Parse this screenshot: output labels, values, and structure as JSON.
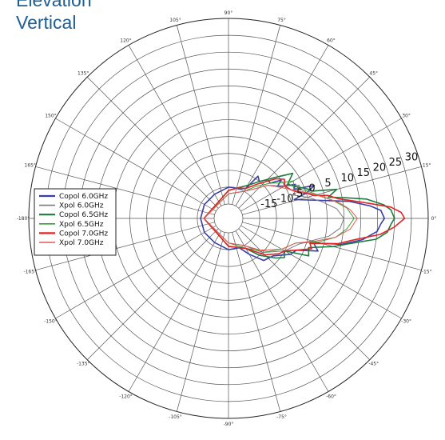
{
  "titles": {
    "line1": "Elevation",
    "line2": "Vertical"
  },
  "chart_data": {
    "type": "polar-line",
    "title": "Elevation Vertical",
    "angular_ticks": [
      {
        "label": "90°",
        "angle": 90
      },
      {
        "label": "75°",
        "angle": 75
      },
      {
        "label": "60°",
        "angle": 60
      },
      {
        "label": "45°",
        "angle": 45
      },
      {
        "label": "30°",
        "angle": 30
      },
      {
        "label": "15°",
        "angle": 15
      },
      {
        "label": "0°",
        "angle": 0
      },
      {
        "label": "-15°",
        "angle": -15
      },
      {
        "label": "-30°",
        "angle": -30
      },
      {
        "label": "-45°",
        "angle": -45
      },
      {
        "label": "-60°",
        "angle": -60
      },
      {
        "label": "-75°",
        "angle": -75
      },
      {
        "label": "-90°",
        "angle": -90
      },
      {
        "label": "105°",
        "angle": 105
      },
      {
        "label": "120°",
        "angle": 120
      },
      {
        "label": "135°",
        "angle": 135
      },
      {
        "label": "150°",
        "angle": 150
      },
      {
        "label": "165°",
        "angle": 165
      },
      {
        "label": "-180°",
        "angle": 180
      },
      {
        "label": "-165°",
        "angle": 195
      },
      {
        "label": "-150°",
        "angle": 210
      },
      {
        "label": "-135°",
        "angle": 225
      },
      {
        "label": "-120°",
        "angle": 240
      },
      {
        "label": "-105°",
        "angle": 255
      }
    ],
    "radial_ticks": [
      {
        "label": "-15",
        "value": -15
      },
      {
        "label": "-10",
        "value": -10
      },
      {
        "label": "-5",
        "value": -5
      },
      {
        "label": "0",
        "value": 0
      },
      {
        "label": "5",
        "value": 5
      },
      {
        "label": "10",
        "value": 10
      },
      {
        "label": "15",
        "value": 15
      },
      {
        "label": "20",
        "value": 20
      },
      {
        "label": "25",
        "value": 25
      },
      {
        "label": "30",
        "value": 30
      }
    ],
    "rlim": [
      -20,
      35
    ],
    "grid": true,
    "legend_position": "left",
    "series": [
      {
        "name": "Copol 6.0GHz",
        "color": "#3a3fa8",
        "width": 1.6,
        "points": [
          [
            0,
            22
          ],
          [
            3,
            21
          ],
          [
            5,
            18
          ],
          [
            8,
            12
          ],
          [
            10,
            6
          ],
          [
            13,
            0
          ],
          [
            16,
            -4
          ],
          [
            18,
            0
          ],
          [
            21,
            3
          ],
          [
            24,
            -3
          ],
          [
            27,
            -2
          ],
          [
            30,
            -5
          ],
          [
            33,
            -7
          ],
          [
            36,
            -5
          ],
          [
            40,
            -8
          ],
          [
            45,
            -8
          ],
          [
            50,
            -10
          ],
          [
            55,
            -9
          ],
          [
            60,
            -14
          ],
          [
            70,
            -15
          ],
          [
            80,
            -15
          ],
          [
            90,
            -15
          ],
          [
            120,
            -16
          ],
          [
            150,
            -16
          ],
          [
            180,
            -16
          ],
          [
            210,
            -16
          ],
          [
            240,
            -16
          ],
          [
            270,
            -15
          ],
          [
            290,
            -15
          ],
          [
            300,
            -12
          ],
          [
            310,
            -8
          ],
          [
            320,
            -7
          ],
          [
            330,
            -3
          ],
          [
            335,
            -2
          ],
          [
            340,
            4
          ],
          [
            344,
            2
          ],
          [
            347,
            10
          ],
          [
            351,
            16
          ],
          [
            355,
            20
          ],
          [
            358,
            21
          ],
          [
            360,
            22
          ]
        ]
      },
      {
        "name": "Xpol 6.0GHz",
        "color": "#7a7a7a",
        "width": 1.0,
        "points": [
          [
            0,
            10
          ],
          [
            5,
            8
          ],
          [
            10,
            4
          ],
          [
            15,
            0
          ],
          [
            20,
            -4
          ],
          [
            25,
            -1
          ],
          [
            30,
            -5
          ],
          [
            40,
            -9
          ],
          [
            50,
            -13
          ],
          [
            60,
            -15
          ],
          [
            90,
            -17
          ],
          [
            180,
            -17
          ],
          [
            270,
            -17
          ],
          [
            300,
            -15
          ],
          [
            315,
            -10
          ],
          [
            330,
            -5
          ],
          [
            340,
            -2
          ],
          [
            350,
            6
          ],
          [
            355,
            9
          ],
          [
            360,
            10
          ]
        ]
      },
      {
        "name": "Copol 6.5GHz",
        "color": "#1f7a3e",
        "width": 1.6,
        "points": [
          [
            0,
            25
          ],
          [
            3,
            24
          ],
          [
            5,
            22
          ],
          [
            8,
            17
          ],
          [
            10,
            11
          ],
          [
            12,
            6
          ],
          [
            15,
            9
          ],
          [
            18,
            2
          ],
          [
            20,
            1
          ],
          [
            25,
            -2
          ],
          [
            30,
            -4
          ],
          [
            35,
            -1
          ],
          [
            40,
            -5
          ],
          [
            50,
            -10
          ],
          [
            60,
            -13
          ],
          [
            75,
            -15
          ],
          [
            90,
            -16
          ],
          [
            180,
            -17
          ],
          [
            270,
            -16
          ],
          [
            300,
            -14
          ],
          [
            310,
            -10
          ],
          [
            320,
            -6
          ],
          [
            325,
            -4
          ],
          [
            330,
            -5
          ],
          [
            335,
            2
          ],
          [
            340,
            1
          ],
          [
            345,
            8
          ],
          [
            348,
            12
          ],
          [
            352,
            20
          ],
          [
            355,
            23
          ],
          [
            358,
            24
          ],
          [
            360,
            25
          ]
        ]
      },
      {
        "name": "Xpol 6.5GHz",
        "color": "#33a030",
        "width": 1.0,
        "points": [
          [
            0,
            13
          ],
          [
            5,
            11
          ],
          [
            10,
            7
          ],
          [
            15,
            3
          ],
          [
            20,
            0
          ],
          [
            25,
            -3
          ],
          [
            30,
            -2
          ],
          [
            35,
            -6
          ],
          [
            40,
            -8
          ],
          [
            50,
            -12
          ],
          [
            60,
            -15
          ],
          [
            90,
            -17
          ],
          [
            180,
            -17
          ],
          [
            270,
            -17
          ],
          [
            300,
            -14
          ],
          [
            320,
            -9
          ],
          [
            330,
            -6
          ],
          [
            340,
            -3
          ],
          [
            345,
            3
          ],
          [
            350,
            8
          ],
          [
            355,
            11
          ],
          [
            360,
            13
          ]
        ]
      },
      {
        "name": "Copol 7.0GHz",
        "color": "#e22323",
        "width": 1.6,
        "points": [
          [
            0,
            28
          ],
          [
            2,
            27
          ],
          [
            4,
            24
          ],
          [
            6,
            18
          ],
          [
            8,
            13
          ],
          [
            10,
            9
          ],
          [
            13,
            6
          ],
          [
            15,
            2
          ],
          [
            18,
            0
          ],
          [
            20,
            -2
          ],
          [
            25,
            -4
          ],
          [
            30,
            -5
          ],
          [
            35,
            -4
          ],
          [
            40,
            -6
          ],
          [
            50,
            -11
          ],
          [
            60,
            -14
          ],
          [
            75,
            -15
          ],
          [
            90,
            -16
          ],
          [
            180,
            -17
          ],
          [
            270,
            -16
          ],
          [
            300,
            -14
          ],
          [
            315,
            -9
          ],
          [
            325,
            -6
          ],
          [
            330,
            -5
          ],
          [
            335,
            -2
          ],
          [
            340,
            2
          ],
          [
            343,
            1
          ],
          [
            347,
            9
          ],
          [
            350,
            13
          ],
          [
            354,
            21
          ],
          [
            357,
            25
          ],
          [
            360,
            28
          ]
        ]
      },
      {
        "name": "Xpol 7.0GHz",
        "color": "#e65a5a",
        "width": 1.0,
        "points": [
          [
            0,
            14
          ],
          [
            4,
            12
          ],
          [
            8,
            9
          ],
          [
            12,
            5
          ],
          [
            16,
            2
          ],
          [
            20,
            -1
          ],
          [
            25,
            -4
          ],
          [
            30,
            -6
          ],
          [
            40,
            -9
          ],
          [
            50,
            -13
          ],
          [
            60,
            -15
          ],
          [
            90,
            -17
          ],
          [
            180,
            -17
          ],
          [
            270,
            -17
          ],
          [
            300,
            -15
          ],
          [
            315,
            -11
          ],
          [
            330,
            -6
          ],
          [
            340,
            -3
          ],
          [
            345,
            2
          ],
          [
            350,
            8
          ],
          [
            355,
            12
          ],
          [
            360,
            14
          ]
        ]
      }
    ]
  }
}
